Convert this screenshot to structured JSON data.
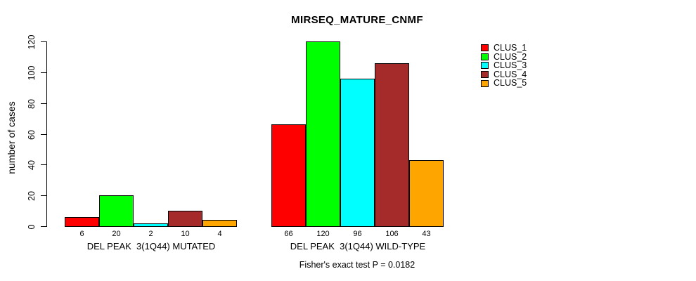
{
  "chart_data": {
    "type": "bar",
    "title": "MIRSEQ_MATURE_CNMF",
    "ylabel": "number of cases",
    "ylim": [
      0,
      120
    ],
    "yticks": [
      0,
      20,
      40,
      60,
      80,
      100,
      120
    ],
    "grid": false,
    "legend_position": "right-outside",
    "categories": [
      "DEL PEAK  3(1Q44) MUTATED",
      "DEL PEAK  3(1Q44) WILD-TYPE"
    ],
    "series": [
      {
        "name": "CLUS_1",
        "color": "#ff0000",
        "values": [
          6,
          66
        ]
      },
      {
        "name": "CLUS_2",
        "color": "#00ff00",
        "values": [
          20,
          120
        ]
      },
      {
        "name": "CLUS_3",
        "color": "#00ffff",
        "values": [
          2,
          96
        ]
      },
      {
        "name": "CLUS_4",
        "color": "#a52a2a",
        "values": [
          10,
          106
        ]
      },
      {
        "name": "CLUS_5",
        "color": "#ffa500",
        "values": [
          4,
          43
        ]
      }
    ],
    "bar_value_labels": [
      [
        6,
        20,
        2,
        10,
        4
      ],
      [
        66,
        120,
        96,
        106,
        43
      ]
    ],
    "annotation": "Fisher's exact test P = 0.0182"
  },
  "legend": {
    "items": [
      {
        "label": "CLUS_1",
        "color": "#ff0000"
      },
      {
        "label": "CLUS_2",
        "color": "#00ff00"
      },
      {
        "label": "CLUS_3",
        "color": "#00ffff"
      },
      {
        "label": "CLUS_4",
        "color": "#a52a2a"
      },
      {
        "label": "CLUS_5",
        "color": "#ffa500"
      }
    ]
  }
}
